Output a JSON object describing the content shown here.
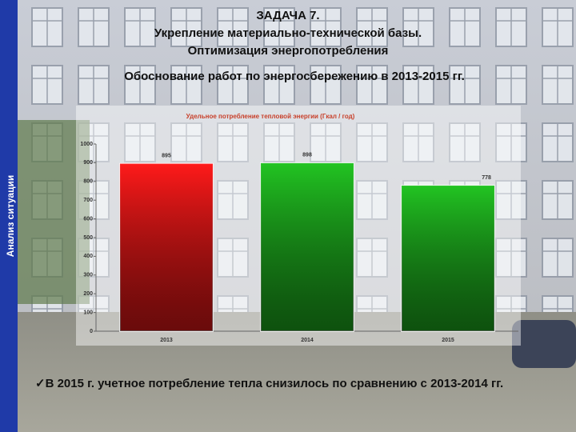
{
  "slide": {
    "sidebar": "Анализ ситуации",
    "title_lines": [
      "ЗАДАЧА 7.",
      "Укрепление материально-технической базы.",
      "Оптимизация энергопотребления"
    ],
    "subtitle": "Обоснование работ по энергосбережению в 2013-2015 гг.",
    "note": "✓В 2015 г. учетное потребление тепла снизилось по сравнению с 2013-2014 гг."
  },
  "chart_data": {
    "type": "bar",
    "title": "Удельное потребление тепловой энергии (Гкал / год)",
    "categories": [
      "2013",
      "2014",
      "2015"
    ],
    "values": [
      895,
      898,
      778
    ],
    "colors": [
      "#ff1a1a",
      "#22c422",
      "#22c422"
    ],
    "ylim": [
      0,
      1000
    ],
    "yticks": [
      0,
      100,
      200,
      300,
      400,
      500,
      600,
      700,
      800,
      900,
      1000
    ],
    "grid": false
  }
}
